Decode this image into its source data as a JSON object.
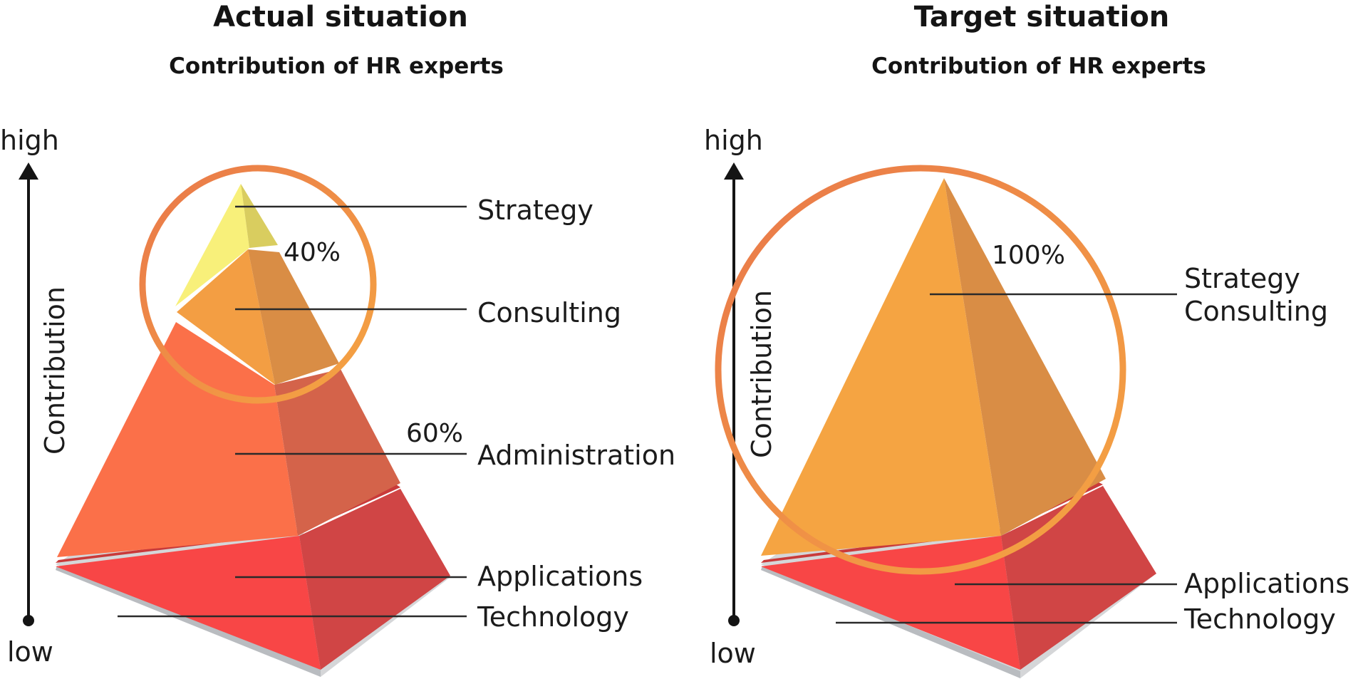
{
  "panels": [
    {
      "title": "Actual situation",
      "subtitle": "Contribution of HR experts",
      "axis": {
        "top": "high",
        "bottom": "low",
        "label": "Contribution"
      },
      "layers": [
        "Strategy",
        "Consulting",
        "Administration",
        "Applications",
        "Technology"
      ],
      "percentages": [
        "40%",
        "60%"
      ]
    },
    {
      "title": "Target situation",
      "subtitle": "Contribution of HR experts",
      "axis": {
        "top": "high",
        "bottom": "low",
        "label": "Contribution"
      },
      "layers": [
        "Strategy",
        "Consulting",
        "Applications",
        "Technology"
      ],
      "percentages": [
        "100%"
      ]
    }
  ],
  "colors": {
    "strategy_yellow": "#F8F07A",
    "consulting_orange": "#F39E43",
    "administration_orange": "#FB7049",
    "applications_red": "#F84646",
    "shadow_grey": "#D5D6D8",
    "circle_highlight": "#EF8A46"
  }
}
